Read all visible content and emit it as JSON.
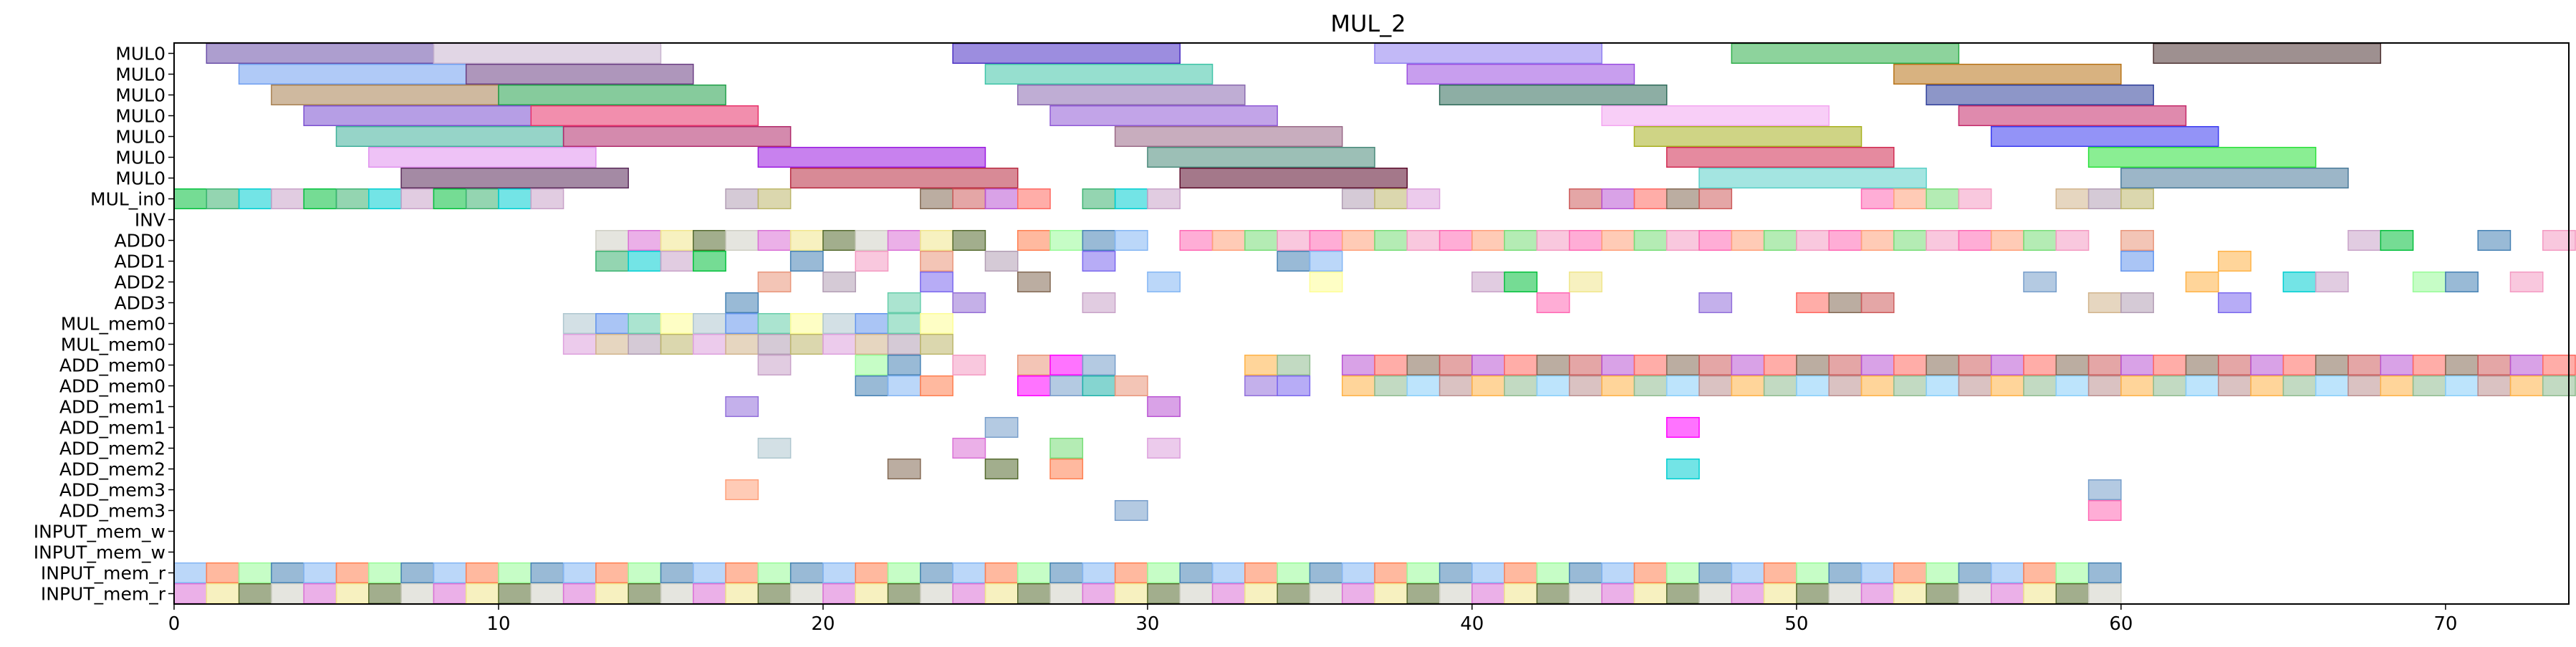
{
  "chart_data": {
    "type": "gantt",
    "title": "MUL_2",
    "xlabel": "",
    "ylabel": "",
    "xlim": [
      0,
      73.8
    ],
    "grid": false,
    "legend": "none",
    "x_ticks": [
      0,
      10,
      20,
      30,
      40,
      50,
      60,
      70
    ],
    "rows": [
      "MUL0",
      "MUL0",
      "MUL0",
      "MUL0",
      "MUL0",
      "MUL0",
      "MUL0",
      "MUL_in0",
      "INV",
      "ADD0",
      "ADD1",
      "ADD2",
      "ADD3",
      "MUL_mem0",
      "MUL_mem0",
      "ADD_mem0",
      "ADD_mem0",
      "ADD_mem1",
      "ADD_mem1",
      "ADD_mem2",
      "ADD_mem2",
      "ADD_mem3",
      "ADD_mem3",
      "INPUT_mem_w",
      "INPUT_mem_w",
      "INPUT_mem_r",
      "INPUT_mem_r"
    ],
    "palette": [
      "#a7c7e7",
      "#c8a2c8",
      "#77dd77",
      "#fdfd96",
      "#ff6961",
      "#84b6f4",
      "#b39eb5",
      "#ffb347",
      "#cfcfc4",
      "#779ecb",
      "#966fd6",
      "#03c03c",
      "#f49ac2",
      "#aec6cf",
      "#836953",
      "#ff7f50",
      "#bdb76b",
      "#8fbc8f",
      "#da70d6",
      "#20b2aa",
      "#9370db",
      "#3cb371",
      "#ff69b4",
      "#6495ed",
      "#cd5c5c",
      "#98fb98",
      "#dda0dd",
      "#87cefa",
      "#f0e68c",
      "#e9967a",
      "#7b68ee",
      "#00ced1",
      "#ffa07a",
      "#66cdaa",
      "#ba55d3",
      "#4682b4",
      "#d2b48c",
      "#bc8f8f",
      "#556b2f",
      "#ff00ff"
    ],
    "mul_bars": [
      {
        "row": 0,
        "start": 1,
        "end": 8,
        "color": "#6a4fa8"
      },
      {
        "row": 0,
        "start": 8,
        "end": 15,
        "color": "#c8b4cf"
      },
      {
        "row": 0,
        "start": 24,
        "end": 31,
        "color": "#4b2fc4"
      },
      {
        "row": 0,
        "start": 37,
        "end": 44,
        "color": "#8f7ff0"
      },
      {
        "row": 0,
        "start": 48,
        "end": 55,
        "color": "#2fae4a"
      },
      {
        "row": 0,
        "start": 61,
        "end": 68,
        "color": "#4f3434"
      },
      {
        "row": 1,
        "start": 2,
        "end": 9,
        "color": "#6f9ef0"
      },
      {
        "row": 1,
        "start": 9,
        "end": 16,
        "color": "#6b3f84"
      },
      {
        "row": 1,
        "start": 25,
        "end": 32,
        "color": "#3fc4a8"
      },
      {
        "row": 1,
        "start": 38,
        "end": 45,
        "color": "#9b4fe0"
      },
      {
        "row": 1,
        "start": 53,
        "end": 60,
        "color": "#b87318"
      },
      {
        "row": 2,
        "start": 3,
        "end": 10,
        "color": "#a88050"
      },
      {
        "row": 2,
        "start": 10,
        "end": 17,
        "color": "#22a04a"
      },
      {
        "row": 2,
        "start": 26,
        "end": 33,
        "color": "#8a6ab0"
      },
      {
        "row": 2,
        "start": 39,
        "end": 46,
        "color": "#2f6b5a"
      },
      {
        "row": 2,
        "start": 54,
        "end": 61,
        "color": "#2f3f9a"
      },
      {
        "row": 3,
        "start": 4,
        "end": 11,
        "color": "#7a4fd0"
      },
      {
        "row": 3,
        "start": 11,
        "end": 18,
        "color": "#e8326a"
      },
      {
        "row": 3,
        "start": 27,
        "end": 34,
        "color": "#8f5ad6"
      },
      {
        "row": 3,
        "start": 44,
        "end": 51,
        "color": "#f3a6f0"
      },
      {
        "row": 3,
        "start": 55,
        "end": 62,
        "color": "#c42a6a"
      },
      {
        "row": 4,
        "start": 5,
        "end": 12,
        "color": "#3fb09a"
      },
      {
        "row": 4,
        "start": 12,
        "end": 19,
        "color": "#b02a6a"
      },
      {
        "row": 4,
        "start": 29,
        "end": 36,
        "color": "#9a6a88"
      },
      {
        "row": 4,
        "start": 45,
        "end": 52,
        "color": "#a8b020"
      },
      {
        "row": 4,
        "start": 56,
        "end": 63,
        "color": "#3a3af0"
      },
      {
        "row": 5,
        "start": 6,
        "end": 13,
        "color": "#e090ee"
      },
      {
        "row": 5,
        "start": 18,
        "end": 25,
        "color": "#9a1ae0"
      },
      {
        "row": 5,
        "start": 30,
        "end": 37,
        "color": "#4a8a7a"
      },
      {
        "row": 5,
        "start": 46,
        "end": 53,
        "color": "#d02a50"
      },
      {
        "row": 5,
        "start": 59,
        "end": 66,
        "color": "#2ae03a"
      },
      {
        "row": 6,
        "start": 7,
        "end": 14,
        "color": "#5a2a5a"
      },
      {
        "row": 6,
        "start": 19,
        "end": 26,
        "color": "#b82a40"
      },
      {
        "row": 6,
        "start": 31,
        "end": 38,
        "color": "#5a0a2a"
      },
      {
        "row": 6,
        "start": 47,
        "end": 54,
        "color": "#5ad0c8"
      },
      {
        "row": 6,
        "start": 60,
        "end": 67,
        "color": "#4a7a9a"
      }
    ],
    "cell_rows": [
      {
        "row": 7,
        "cells": [
          0,
          1,
          2,
          3,
          4,
          5,
          6,
          7,
          8,
          9,
          10,
          11,
          17,
          18,
          23,
          24,
          25,
          26,
          28,
          29,
          30,
          36,
          37,
          38,
          43,
          44,
          45,
          46,
          47,
          52,
          53,
          54,
          55,
          58,
          59,
          60
        ]
      },
      {
        "row": 9,
        "cells": [
          13,
          14,
          15,
          16,
          17,
          18,
          19,
          20,
          21,
          22,
          23,
          24,
          26,
          27,
          28,
          29,
          31,
          32,
          33,
          34,
          35,
          36,
          37,
          38,
          39,
          40,
          41,
          42,
          43,
          44,
          45,
          46,
          47,
          48,
          49,
          50,
          51,
          52,
          53,
          54,
          55,
          56,
          57,
          58,
          60,
          67,
          68,
          71,
          73
        ]
      },
      {
        "row": 10,
        "cells": [
          13,
          14,
          15,
          16,
          19,
          21,
          23,
          25,
          28,
          34,
          35,
          60,
          63
        ]
      },
      {
        "row": 11,
        "cells": [
          18,
          20,
          23,
          26,
          30,
          35,
          40,
          41,
          43,
          57,
          62,
          65,
          66,
          69,
          70,
          72
        ]
      },
      {
        "row": 12,
        "cells": [
          17,
          22,
          24,
          28,
          42,
          47,
          50,
          51,
          52,
          59,
          60,
          63
        ]
      },
      {
        "row": 13,
        "cells": [
          12,
          13,
          14,
          15,
          16,
          17,
          18,
          19,
          20,
          21,
          22,
          23
        ]
      },
      {
        "row": 14,
        "cells": [
          12,
          13,
          14,
          15,
          16,
          17,
          18,
          19,
          20,
          21,
          22,
          23
        ]
      },
      {
        "row": 15,
        "cells": [
          18,
          21,
          22,
          24,
          26,
          27,
          28,
          33,
          34,
          36,
          37,
          38,
          39,
          40,
          41,
          42,
          43,
          44,
          45,
          46,
          47,
          48,
          49,
          50,
          51,
          52,
          53,
          54,
          55,
          56,
          57,
          58,
          59,
          60,
          61,
          62,
          63,
          64,
          65,
          66,
          67,
          68,
          69,
          70,
          71,
          72,
          73
        ]
      },
      {
        "row": 16,
        "cells": [
          21,
          22,
          23,
          26,
          27,
          28,
          29,
          33,
          34,
          36,
          37,
          38,
          39,
          40,
          41,
          42,
          43,
          44,
          45,
          46,
          47,
          48,
          49,
          50,
          51,
          52,
          53,
          54,
          55,
          56,
          57,
          58,
          59,
          60,
          61,
          62,
          63,
          64,
          65,
          66,
          67,
          68,
          69,
          70,
          71,
          72,
          73
        ]
      },
      {
        "row": 17,
        "cells": [
          17,
          30
        ]
      },
      {
        "row": 18,
        "cells": [
          25,
          46
        ]
      },
      {
        "row": 19,
        "cells": [
          18,
          24,
          27,
          30
        ]
      },
      {
        "row": 20,
        "cells": [
          22,
          25,
          27,
          46
        ]
      },
      {
        "row": 21,
        "cells": [
          17,
          59
        ]
      },
      {
        "row": 22,
        "cells": [
          29,
          59
        ]
      },
      {
        "row": 25,
        "cells": [
          0,
          1,
          2,
          3,
          4,
          5,
          6,
          7,
          8,
          9,
          10,
          11,
          12,
          13,
          14,
          15,
          16,
          17,
          18,
          19,
          20,
          21,
          22,
          23,
          24,
          25,
          26,
          27,
          28,
          29,
          30,
          31,
          32,
          33,
          34,
          35,
          36,
          37,
          38,
          39,
          40,
          41,
          42,
          43,
          44,
          45,
          46,
          47,
          48,
          49,
          50,
          51,
          52,
          53,
          54,
          55,
          56,
          57,
          58,
          59
        ]
      },
      {
        "row": 26,
        "cells": [
          0,
          1,
          2,
          3,
          4,
          5,
          6,
          7,
          8,
          9,
          10,
          11,
          12,
          13,
          14,
          15,
          16,
          17,
          18,
          19,
          20,
          21,
          22,
          23,
          24,
          25,
          26,
          27,
          28,
          29,
          30,
          31,
          32,
          33,
          34,
          35,
          36,
          37,
          38,
          39,
          40,
          41,
          42,
          43,
          44,
          45,
          46,
          47,
          48,
          49,
          50,
          51,
          52,
          53,
          54,
          55,
          56,
          57,
          58,
          59
        ]
      }
    ]
  }
}
